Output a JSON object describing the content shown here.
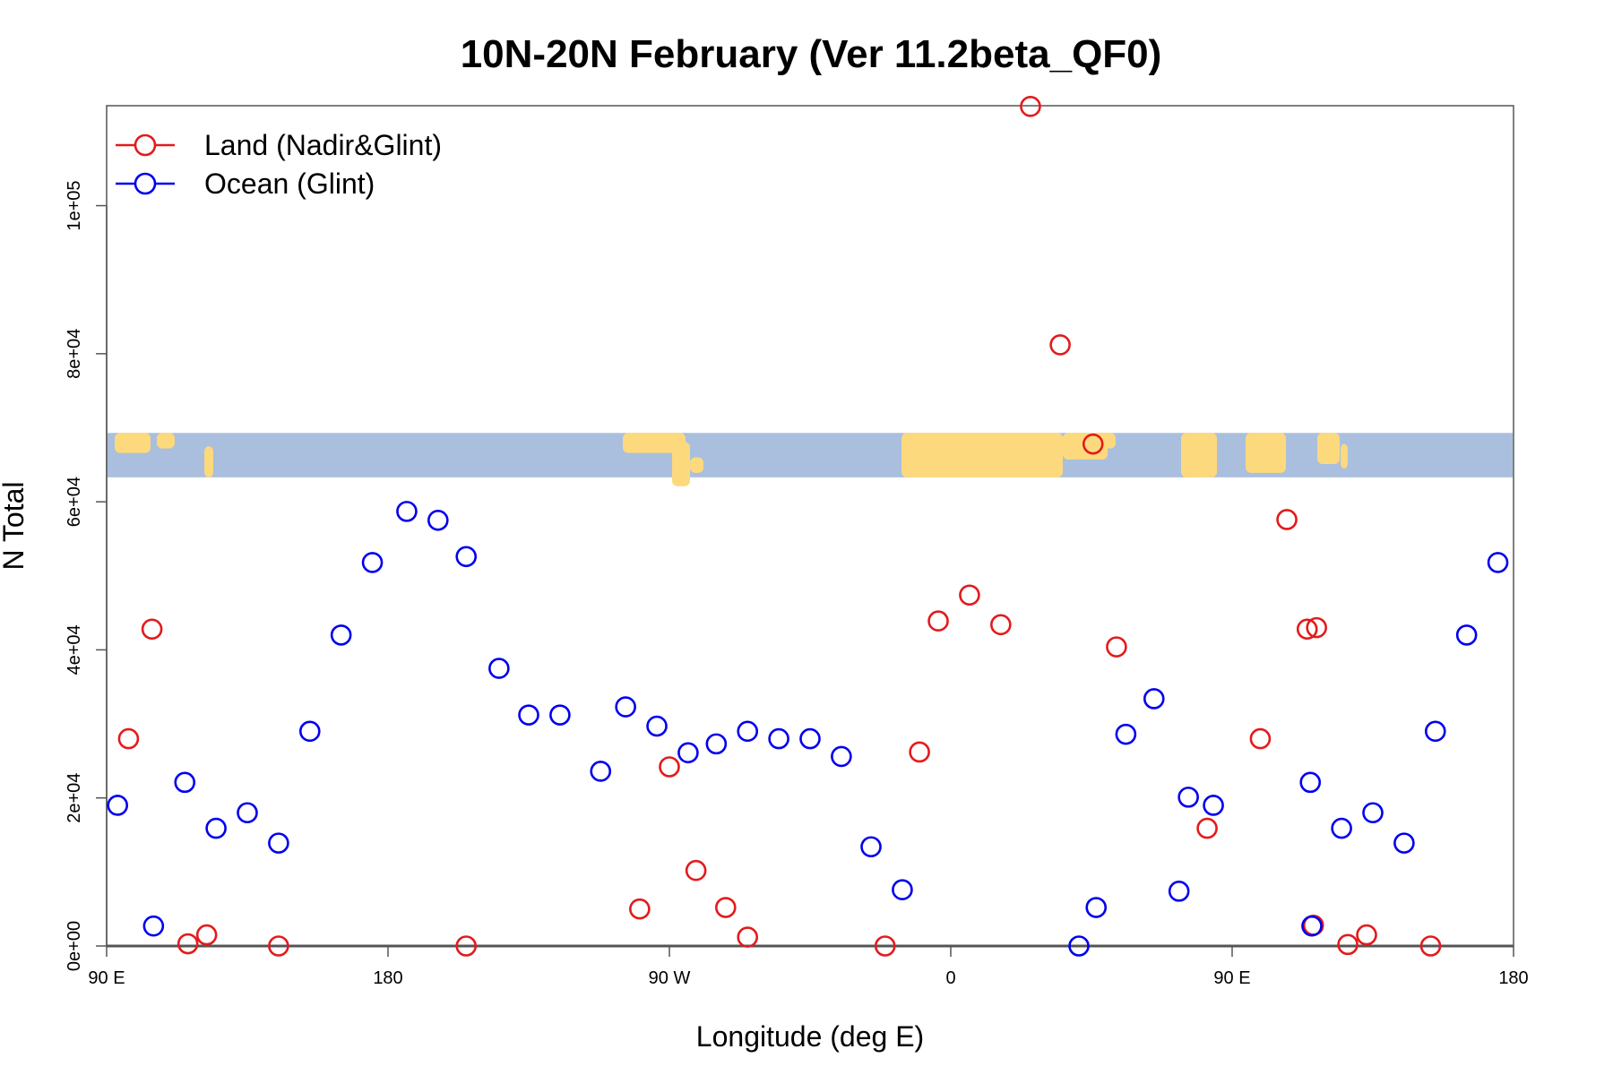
{
  "chart_data": {
    "type": "scatter",
    "title": "10N-20N February (Ver 11.2beta_QF0)",
    "xlabel": "Longitude (deg E)",
    "ylabel": "N Total",
    "xlim": [
      90,
      540
    ],
    "ylim": [
      0,
      113500
    ],
    "x_ticks": [
      {
        "value": 90,
        "label": "90 E"
      },
      {
        "value": 180,
        "label": "180"
      },
      {
        "value": 270,
        "label": "90 W"
      },
      {
        "value": 360,
        "label": "0"
      },
      {
        "value": 450,
        "label": "90 E"
      },
      {
        "value": 540,
        "label": "180"
      }
    ],
    "y_ticks": [
      {
        "value": 0,
        "label": "0e+00"
      },
      {
        "value": 20000,
        "label": "2e+04"
      },
      {
        "value": 40000,
        "label": "4e+04"
      },
      {
        "value": 60000,
        "label": "6e+04"
      },
      {
        "value": 80000,
        "label": "8e+04"
      },
      {
        "value": 100000,
        "label": "1e+05"
      }
    ],
    "legend_position": "top-left",
    "map_strip": {
      "y_range": [
        63300,
        69300
      ],
      "ocean_color": "#a9bfdd",
      "land_color": "#fdd97d"
    },
    "series": [
      {
        "name": "Land (Nadir&Glint)",
        "color": "#e31a1c",
        "points": [
          [
            97,
            28000
          ],
          [
            104.5,
            42800
          ],
          [
            116,
            300
          ],
          [
            122,
            1500
          ],
          [
            145,
            0
          ],
          [
            205,
            0
          ],
          [
            260.5,
            5000
          ],
          [
            270,
            24200
          ],
          [
            278.5,
            10200
          ],
          [
            288,
            5200
          ],
          [
            295,
            1200
          ],
          [
            339,
            0
          ],
          [
            350,
            26200
          ],
          [
            356,
            43900
          ],
          [
            366,
            47400
          ],
          [
            376,
            43400
          ],
          [
            385.5,
            113400
          ],
          [
            395,
            81200
          ],
          [
            405.5,
            67800
          ],
          [
            413,
            40400
          ],
          [
            467.5,
            57600
          ],
          [
            474,
            42800
          ],
          [
            442,
            15900
          ],
          [
            459,
            28000
          ],
          [
            476,
            2800
          ],
          [
            477,
            43000
          ],
          [
            487,
            200
          ],
          [
            493,
            1500
          ],
          [
            513.5,
            0
          ]
        ]
      },
      {
        "name": "Ocean (Glint)",
        "color": "#0000ee",
        "points": [
          [
            93.5,
            19000
          ],
          [
            105,
            2700
          ],
          [
            115,
            22100
          ],
          [
            125,
            15900
          ],
          [
            135,
            18000
          ],
          [
            145,
            13900
          ],
          [
            155,
            29000
          ],
          [
            165,
            42000
          ],
          [
            175,
            51800
          ],
          [
            186,
            58700
          ],
          [
            196,
            57500
          ],
          [
            205,
            52600
          ],
          [
            215.5,
            37500
          ],
          [
            225,
            31200
          ],
          [
            235,
            31200
          ],
          [
            248,
            23600
          ],
          [
            256,
            32300
          ],
          [
            266,
            29700
          ],
          [
            276,
            26100
          ],
          [
            285,
            27300
          ],
          [
            295,
            29000
          ],
          [
            305,
            28000
          ],
          [
            315,
            28000
          ],
          [
            325,
            25600
          ],
          [
            334.5,
            13400
          ],
          [
            344.5,
            7600
          ],
          [
            401,
            0
          ],
          [
            406.5,
            5200
          ],
          [
            416,
            28600
          ],
          [
            425,
            33400
          ],
          [
            433,
            7400
          ],
          [
            436,
            20100
          ],
          [
            444,
            19000
          ],
          [
            475,
            22100
          ],
          [
            475.5,
            2700
          ],
          [
            485,
            15900
          ],
          [
            495,
            18000
          ],
          [
            505,
            13900
          ],
          [
            515,
            29000
          ],
          [
            525,
            42000
          ],
          [
            535,
            51800
          ]
        ]
      }
    ]
  }
}
